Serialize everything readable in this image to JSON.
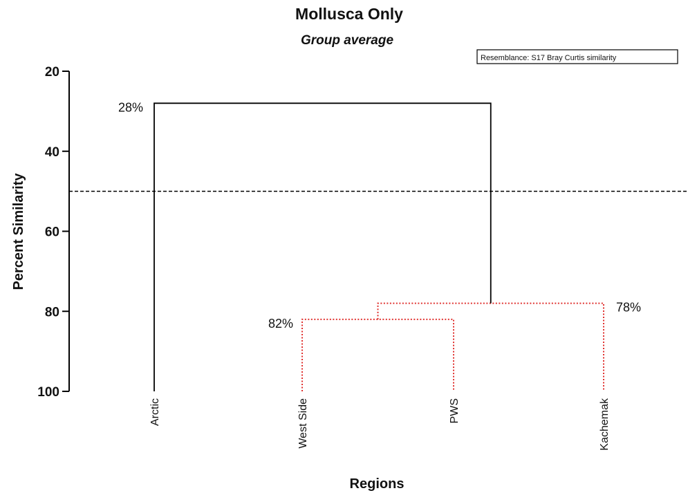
{
  "chart_data": {
    "type": "dendrogram",
    "title": "Mollusca Only",
    "subtitle": "Group average",
    "xlabel": "Regions",
    "ylabel": "Percent Similarity",
    "resemblance_note": "Resemblance: S17 Bray Curtis similarity",
    "ylim": [
      20,
      100
    ],
    "y_inverted": true,
    "yticks": [
      20,
      40,
      60,
      80,
      100
    ],
    "cut_line": 50,
    "leaves": [
      "Arctic",
      "West Side",
      "PWS",
      "Kachemak"
    ],
    "merges": [
      {
        "left": [
          "West Side"
        ],
        "right": [
          "PWS"
        ],
        "similarity": 82,
        "label": "82%",
        "significant": false
      },
      {
        "left": [
          "West Side",
          "PWS"
        ],
        "right": [
          "Kachemak"
        ],
        "similarity": 78,
        "label": "78%",
        "significant": false
      },
      {
        "left": [
          "Arctic"
        ],
        "right": [
          "West Side",
          "PWS",
          "Kachemak"
        ],
        "similarity": 28,
        "label": "28%",
        "significant": true
      }
    ],
    "colors": {
      "significant": "#000000",
      "non_significant": "#e0312f",
      "axis": "#000000"
    }
  }
}
